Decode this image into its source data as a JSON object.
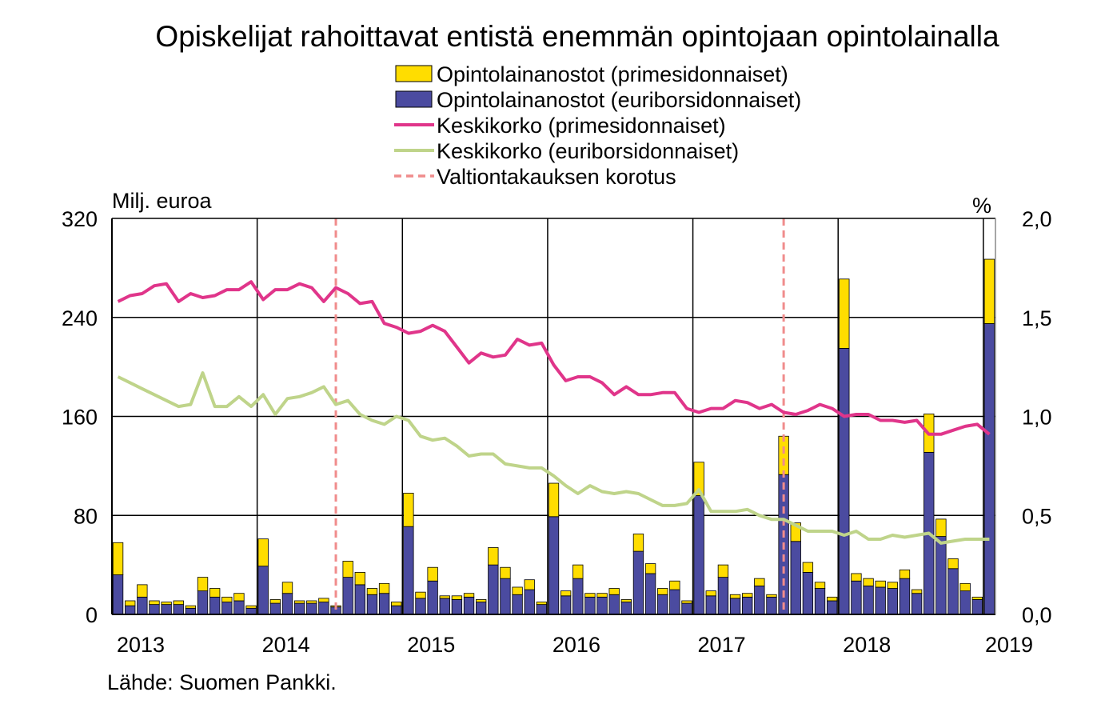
{
  "chart_data": {
    "type": "bar",
    "title": "Opiskelijat rahoittavat entistä enemmän opintojaan opintolainalla",
    "ylabel_left": "Milj. euroa",
    "ylabel_right": "%",
    "source": "Lähde: Suomen Pankki.",
    "ylim_left": [
      0,
      320
    ],
    "ylim_right": [
      0,
      2.0
    ],
    "yticks_left": [
      "0",
      "80",
      "160",
      "240",
      "320"
    ],
    "yticks_right": [
      "0,0",
      "0,5",
      "1,0",
      "1,5",
      "2,0"
    ],
    "xticks": [
      "2013",
      "2014",
      "2015",
      "2016",
      "2017",
      "2018",
      "2019"
    ],
    "grid": true,
    "legend_position": "top-right",
    "start_month": "2013-01",
    "colors": {
      "prime_bar": "#FFDD00",
      "euribor_bar": "#4B4BA0",
      "prime_line": "#E0358A",
      "euribor_line": "#BFD48A",
      "guarantee_line": "#F08C8C",
      "axes": "#000000"
    },
    "legend": [
      {
        "key": "prime_bar",
        "label": "Opintolainanostot (primesidonnaiset)",
        "kind": "box"
      },
      {
        "key": "euribor_bar",
        "label": "Opintolainanostot (euriborsidonnaiset)",
        "kind": "box"
      },
      {
        "key": "prime_line",
        "label": "Keskikorko (primesidonnaiset)",
        "kind": "line"
      },
      {
        "key": "euribor_line",
        "label": "Keskikorko (euriborsidonnaiset)",
        "kind": "line"
      },
      {
        "key": "guarantee_line",
        "label": "Valtiontakauksen korotus",
        "kind": "dash"
      }
    ],
    "guarantee_dates": [
      "2014-07",
      "2017-08"
    ],
    "series": [
      {
        "name": "Opintolainanostot (euriborsidonnaiset)",
        "axis": "left",
        "values": [
          32,
          7,
          14,
          8,
          8,
          8,
          5,
          19,
          14,
          10,
          11,
          5,
          39,
          9,
          17,
          9,
          9,
          10,
          6,
          30,
          24,
          16,
          17,
          7,
          71,
          13,
          27,
          13,
          12,
          14,
          10,
          40,
          29,
          16,
          20,
          8,
          79,
          15,
          29,
          14,
          14,
          16,
          10,
          51,
          33,
          16,
          20,
          9,
          96,
          15,
          30,
          13,
          14,
          23,
          14,
          113,
          59,
          34,
          21,
          11,
          215,
          27,
          23,
          22,
          21,
          29,
          17,
          131,
          63,
          37,
          19,
          12,
          235
        ]
      },
      {
        "name": "Opintolainanostot (primesidonnaiset)",
        "axis": "left",
        "values": [
          26,
          4,
          10,
          3,
          2,
          3,
          2,
          11,
          7,
          4,
          6,
          2,
          22,
          3,
          9,
          2,
          2,
          3,
          1,
          13,
          10,
          5,
          8,
          3,
          27,
          5,
          11,
          2,
          3,
          3,
          2,
          14,
          9,
          6,
          8,
          2,
          27,
          4,
          11,
          3,
          3,
          5,
          2,
          14,
          8,
          5,
          7,
          2,
          27,
          4,
          10,
          3,
          3,
          6,
          2,
          31,
          15,
          8,
          5,
          3,
          56,
          6,
          6,
          5,
          5,
          7,
          3,
          31,
          14,
          8,
          6,
          2,
          52
        ]
      },
      {
        "name": "Keskikorko (primesidonnaiset)",
        "axis": "right",
        "values": [
          1.58,
          1.61,
          1.62,
          1.66,
          1.67,
          1.58,
          1.62,
          1.6,
          1.61,
          1.64,
          1.64,
          1.68,
          1.59,
          1.64,
          1.64,
          1.67,
          1.65,
          1.58,
          1.65,
          1.62,
          1.57,
          1.58,
          1.47,
          1.45,
          1.42,
          1.43,
          1.46,
          1.43,
          1.35,
          1.27,
          1.32,
          1.3,
          1.31,
          1.39,
          1.36,
          1.37,
          1.26,
          1.18,
          1.2,
          1.2,
          1.17,
          1.11,
          1.15,
          1.11,
          1.11,
          1.12,
          1.12,
          1.04,
          1.02,
          1.04,
          1.04,
          1.08,
          1.07,
          1.04,
          1.06,
          1.02,
          1.01,
          1.03,
          1.06,
          1.04,
          1.0,
          1.01,
          1.01,
          0.98,
          0.98,
          0.97,
          0.98,
          0.91,
          0.91,
          0.93,
          0.95,
          0.96,
          0.91
        ]
      },
      {
        "name": "Keskikorko (euriborsidonnaiset)",
        "axis": "right",
        "values": [
          1.2,
          1.17,
          1.14,
          1.11,
          1.08,
          1.05,
          1.06,
          1.22,
          1.05,
          1.05,
          1.1,
          1.05,
          1.11,
          1.01,
          1.09,
          1.1,
          1.12,
          1.15,
          1.06,
          1.08,
          1.01,
          0.98,
          0.96,
          1.0,
          0.98,
          0.9,
          0.88,
          0.89,
          0.85,
          0.8,
          0.81,
          0.81,
          0.76,
          0.75,
          0.74,
          0.74,
          0.7,
          0.65,
          0.61,
          0.65,
          0.62,
          0.61,
          0.62,
          0.61,
          0.58,
          0.55,
          0.55,
          0.56,
          0.63,
          0.52,
          0.52,
          0.52,
          0.53,
          0.5,
          0.48,
          0.48,
          0.45,
          0.42,
          0.42,
          0.42,
          0.4,
          0.42,
          0.38,
          0.38,
          0.4,
          0.39,
          0.4,
          0.41,
          0.36,
          0.37,
          0.38,
          0.38,
          0.38
        ]
      }
    ]
  }
}
